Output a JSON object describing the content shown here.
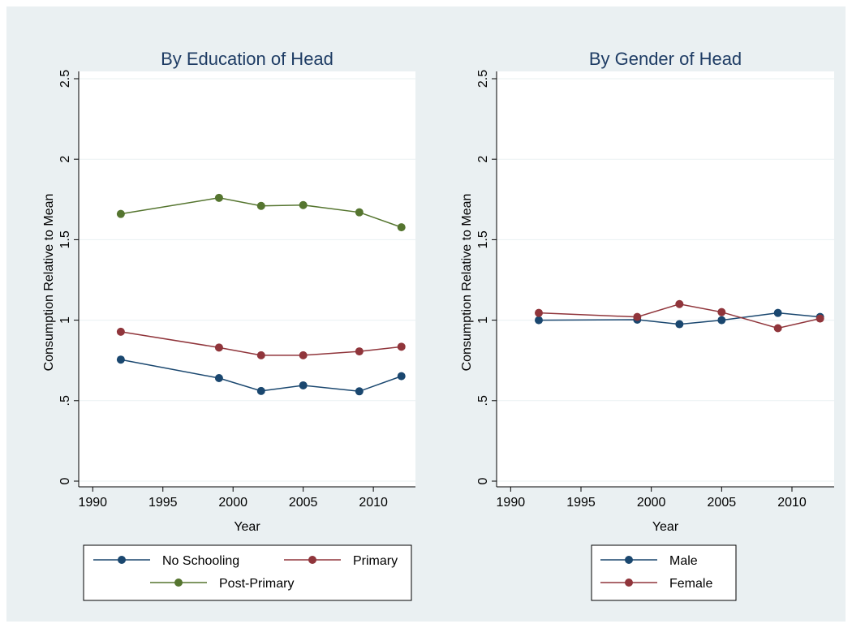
{
  "chart_data": [
    {
      "type": "line",
      "title": "By Education of Head",
      "x_label": "Year",
      "y_label": "Consumption Relative to Mean",
      "x": [
        1992,
        1999,
        2002,
        2005,
        2009,
        2012
      ],
      "series": [
        {
          "name": "No Schooling",
          "color": "#1a476f",
          "values": [
            0.755,
            0.64,
            0.56,
            0.595,
            0.558,
            0.652
          ]
        },
        {
          "name": "Primary",
          "color": "#90353b",
          "values": [
            0.928,
            0.83,
            0.782,
            0.782,
            0.806,
            0.835
          ]
        },
        {
          "name": "Post-Primary",
          "color": "#55752f",
          "values": [
            1.66,
            1.76,
            1.71,
            1.715,
            1.67,
            1.577
          ]
        }
      ],
      "xlim": [
        1989,
        2013
      ],
      "xticks": [
        1990,
        1995,
        2000,
        2005,
        2010
      ],
      "ylim": [
        0,
        2.5
      ],
      "yticks": [
        0,
        {
          "value": 0.5,
          "label": ".5"
        },
        1,
        1.5,
        2,
        2.5
      ],
      "grid": true
    },
    {
      "type": "line",
      "title": "By Gender of Head",
      "x_label": "Year",
      "y_label": "Consumption Relative to Mean",
      "x": [
        1992,
        1999,
        2002,
        2005,
        2009,
        2012
      ],
      "series": [
        {
          "name": "Male",
          "color": "#1a476f",
          "values": [
            1.0,
            1.003,
            0.975,
            1.0,
            1.045,
            1.02
          ]
        },
        {
          "name": "Female",
          "color": "#90353b",
          "values": [
            1.045,
            1.02,
            1.1,
            1.05,
            0.95,
            1.01
          ]
        }
      ],
      "xlim": [
        1989,
        2013
      ],
      "xticks": [
        1990,
        1995,
        2000,
        2005,
        2010
      ],
      "ylim": [
        0,
        2.5
      ],
      "yticks": [
        0,
        {
          "value": 0.5,
          "label": ".5"
        },
        1,
        1.5,
        2,
        2.5
      ],
      "grid": true
    }
  ]
}
